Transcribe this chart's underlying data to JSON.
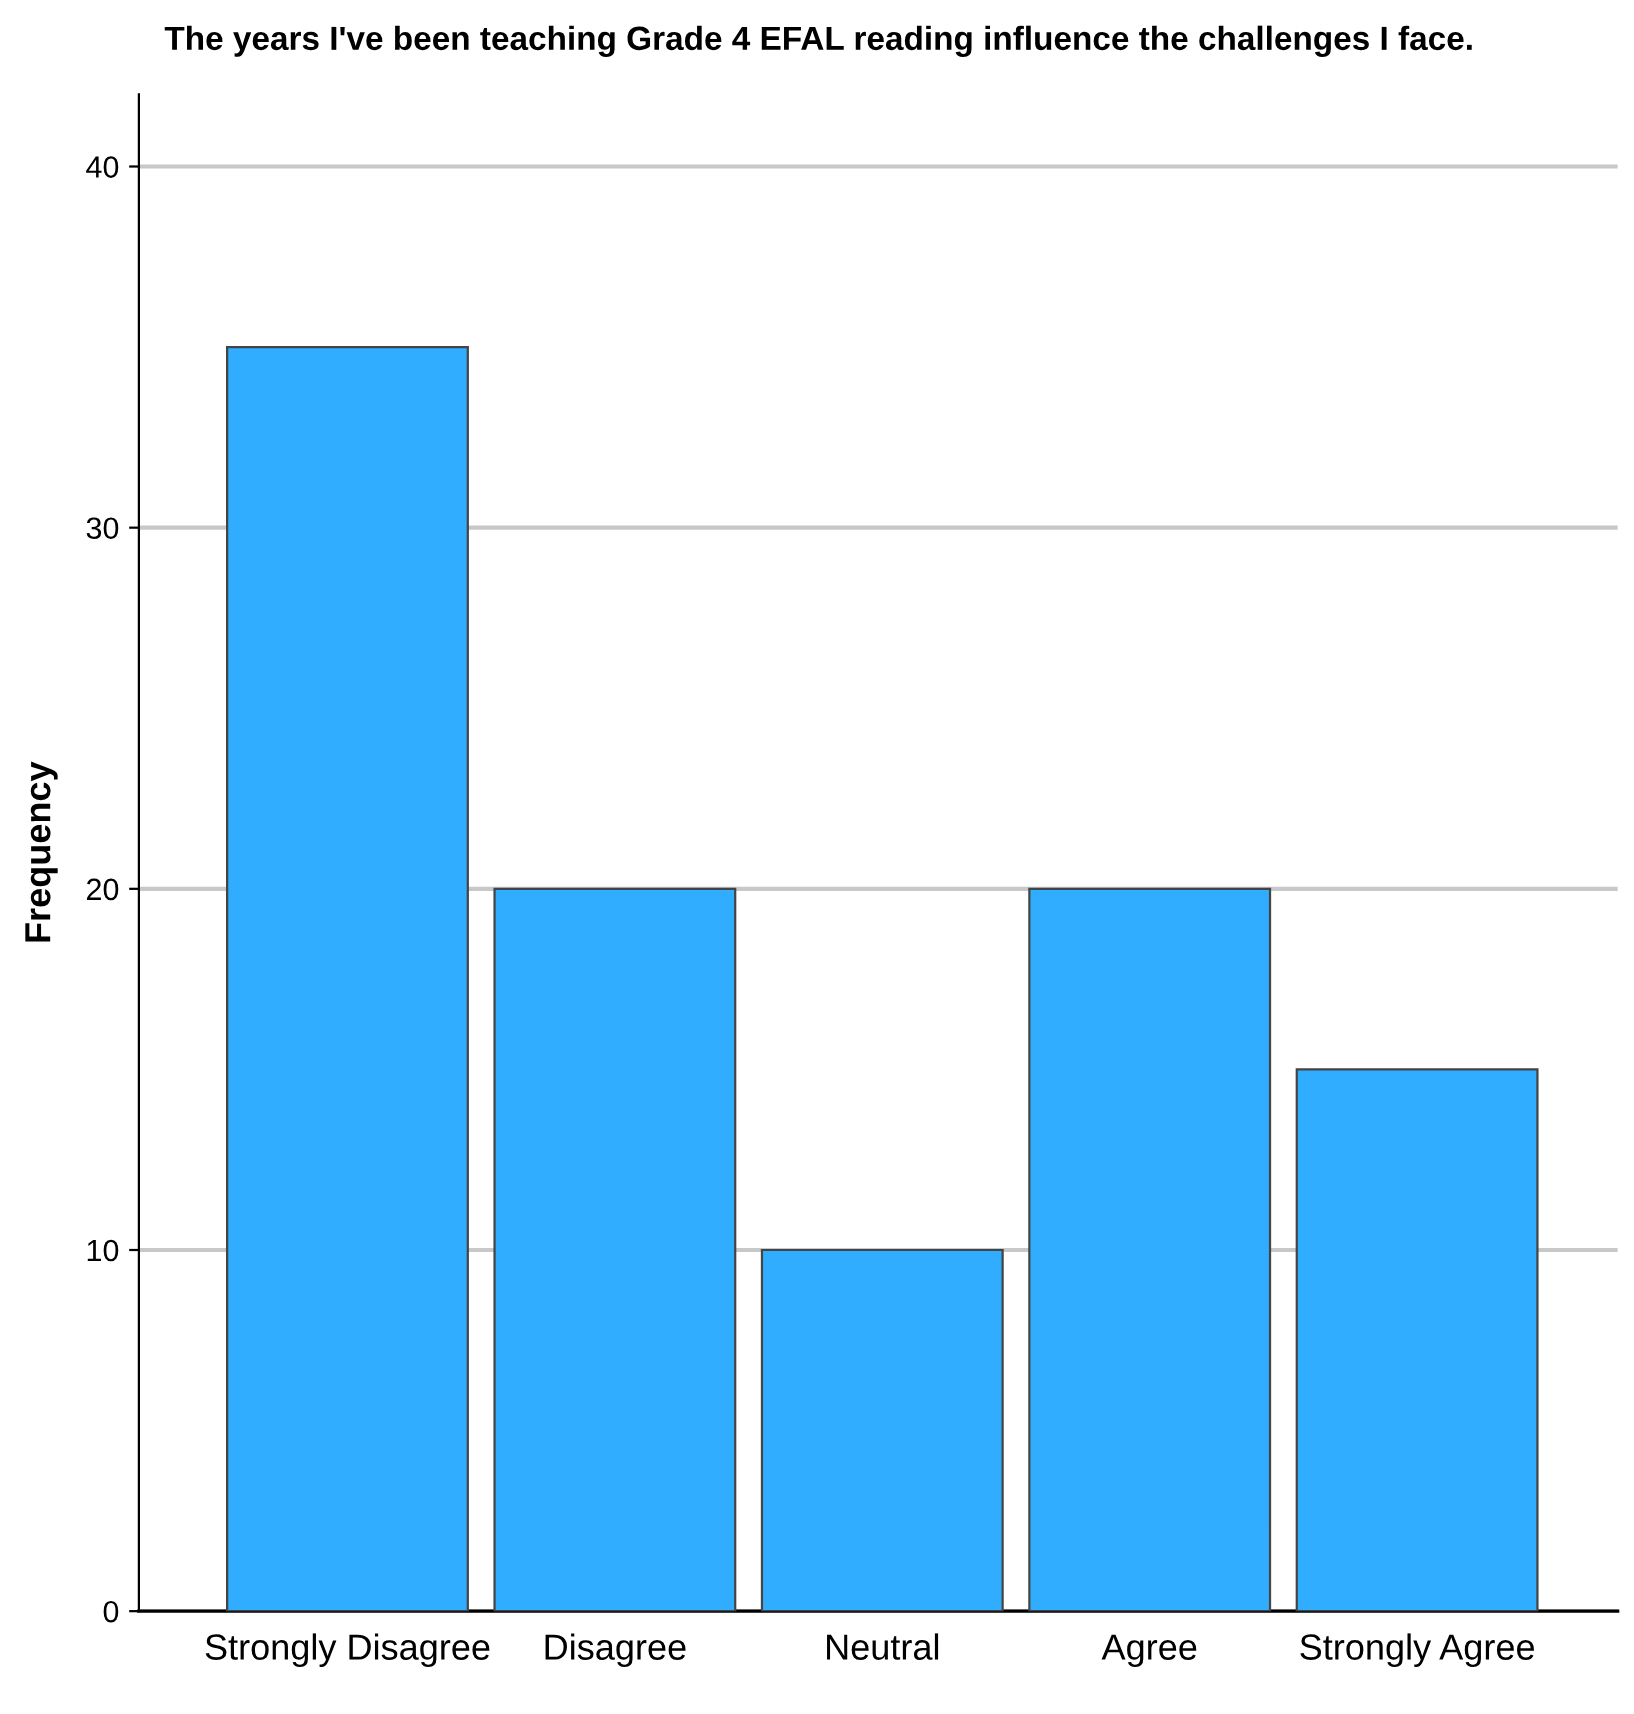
{
  "chart_data": {
    "type": "bar",
    "title": "The years I've been teaching Grade 4 EFAL reading influence the challenges I face.",
    "ylabel": "Frequency",
    "categories": [
      "Strongly Disagree",
      "Disagree",
      "Neutral",
      "Agree",
      "Strongly Agree"
    ],
    "values": [
      35,
      20,
      10,
      20,
      15
    ],
    "color": "#31adff",
    "ylim": [
      0,
      42
    ],
    "yticks": [
      0,
      10,
      20,
      30,
      40
    ],
    "grid": "y"
  }
}
